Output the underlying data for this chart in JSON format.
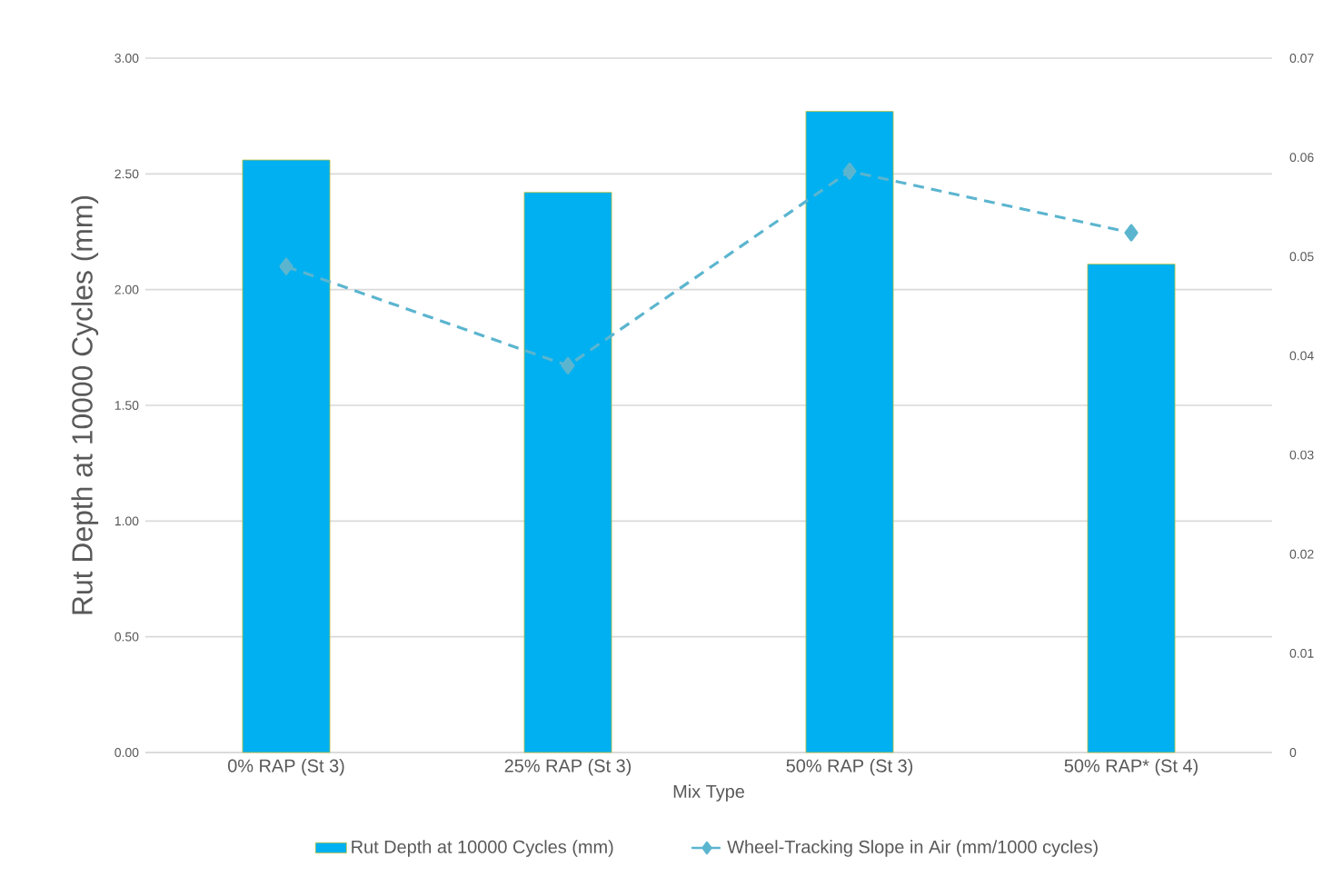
{
  "chart_data": {
    "type": "bar",
    "categories": [
      "0% RAP (St 3)",
      "25% RAP (St 3)",
      "50% RAP (St 3)",
      "50% RAP* (St 4)"
    ],
    "xlabel": "Mix Type",
    "ylabel": "Rut Depth at 10000 Cycles (mm)",
    "series": [
      {
        "name": "Rut Depth at 10000 Cycles (mm)",
        "color": "#00b0f0",
        "values": [
          2.56,
          2.42,
          2.77,
          2.11
        ]
      },
      {
        "name": "Wheel-Tracking Slope in Air (mm/1000 cycles)",
        "type": "line",
        "axis": "y2",
        "color": "#5bb5cf",
        "marker": "diamond",
        "line_style": "dashed",
        "values": [
          0.049,
          0.039,
          0.0586,
          0.0524
        ]
      }
    ],
    "ylim": [
      0,
      3
    ],
    "yticks": [
      {
        "value": 0,
        "label": "0.00"
      },
      {
        "value": 0.5,
        "label": "0.50"
      },
      {
        "value": 1,
        "label": "1.00"
      },
      {
        "value": 1.5,
        "label": "1.50"
      },
      {
        "value": 2,
        "label": "2.00"
      },
      {
        "value": 2.5,
        "label": "2.50"
      },
      {
        "value": 3,
        "label": "3.00"
      }
    ],
    "y2lim": [
      0,
      0.07
    ],
    "y2ticks": [
      0,
      0.01,
      0.02,
      0.03,
      0.04,
      0.05,
      0.06,
      0.07
    ],
    "grid": "y",
    "legend": "bottom"
  }
}
